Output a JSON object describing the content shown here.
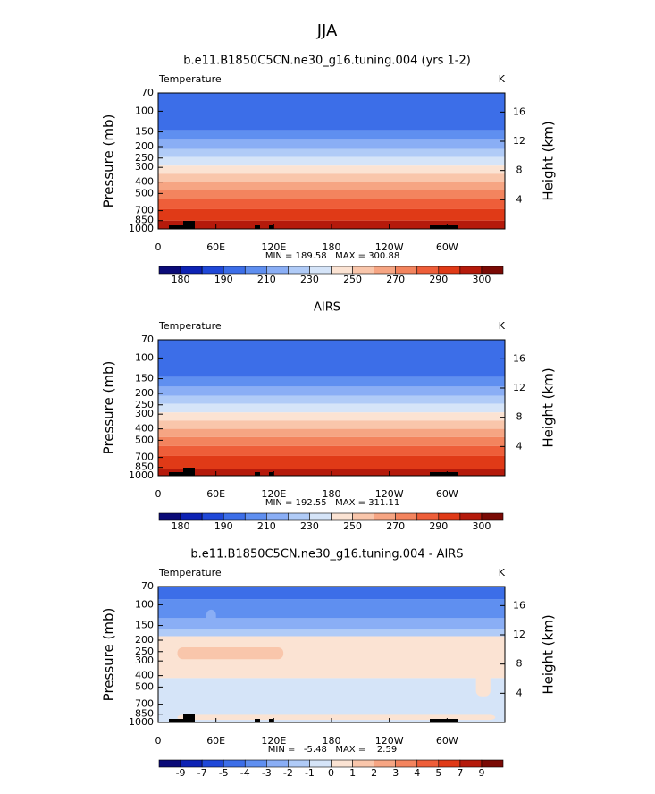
{
  "suptitle": "JJA",
  "chart_data": [
    {
      "type": "contour",
      "title": "b.e11.B1850C5CN.ne30_g16.tuning.004 (yrs 1-2)",
      "label_left": "Temperature",
      "label_right": "K",
      "ylabel": "Pressure (mb)",
      "y2label": "Height (km)",
      "ylim": [
        70,
        1000
      ],
      "log_y": true,
      "y_reversed": true,
      "yticks": [
        70,
        100,
        150,
        200,
        250,
        300,
        400,
        500,
        700,
        850,
        1000
      ],
      "y2ticks": [
        4,
        8,
        12,
        16
      ],
      "xlim": [
        0,
        360
      ],
      "xticks": [
        0,
        {
          "value": 60,
          "label": "60E"
        },
        {
          "value": 120,
          "label": "120E"
        },
        180,
        {
          "value": 240,
          "label": "120W"
        },
        {
          "value": 300,
          "label": "60W"
        }
      ],
      "stats": "MIN = 189.58   MAX = 300.88",
      "colorbar": {
        "colors": [
          "#0b0b78",
          "#0d22b4",
          "#1f48d8",
          "#3c6ee8",
          "#5f8ff0",
          "#8aaef5",
          "#b0cbf7",
          "#d5e4f8",
          "#fbe3d3",
          "#f9c6ab",
          "#f6a583",
          "#f3845e",
          "#ee5e39",
          "#e03a17",
          "#b51a0b",
          "#7a0a05"
        ],
        "labels": [
          180,
          190,
          210,
          230,
          250,
          270,
          290,
          300
        ]
      },
      "bands": [
        {
          "from": 70,
          "to": 145,
          "level": 3
        },
        {
          "from": 145,
          "to": 175,
          "level": 4
        },
        {
          "from": 175,
          "to": 210,
          "level": 5
        },
        {
          "from": 210,
          "to": 245,
          "level": 6
        },
        {
          "from": 245,
          "to": 290,
          "level": 7
        },
        {
          "from": 290,
          "to": 340,
          "level": 8
        },
        {
          "from": 340,
          "to": 400,
          "level": 9
        },
        {
          "from": 400,
          "to": 470,
          "level": 10
        },
        {
          "from": 470,
          "to": 560,
          "level": 11
        },
        {
          "from": 560,
          "to": 680,
          "level": 12
        },
        {
          "from": 680,
          "to": 850,
          "level": 13
        },
        {
          "from": 850,
          "to": 1000,
          "level": 14
        }
      ],
      "patches": []
    },
    {
      "type": "contour",
      "title": "AIRS",
      "label_left": "Temperature",
      "label_right": "K",
      "ylabel": "Pressure (mb)",
      "y2label": "Height (km)",
      "ylim": [
        70,
        1000
      ],
      "log_y": true,
      "y_reversed": true,
      "yticks": [
        70,
        100,
        150,
        200,
        250,
        300,
        400,
        500,
        700,
        850,
        1000
      ],
      "y2ticks": [
        4,
        8,
        12,
        16
      ],
      "xlim": [
        0,
        360
      ],
      "xticks": [
        0,
        {
          "value": 60,
          "label": "60E"
        },
        {
          "value": 120,
          "label": "120E"
        },
        180,
        {
          "value": 240,
          "label": "120W"
        },
        {
          "value": 300,
          "label": "60W"
        }
      ],
      "stats": "MIN = 192.55   MAX = 311.11",
      "colorbar": {
        "colors": [
          "#0b0b78",
          "#0d22b4",
          "#1f48d8",
          "#3c6ee8",
          "#5f8ff0",
          "#8aaef5",
          "#b0cbf7",
          "#d5e4f8",
          "#fbe3d3",
          "#f9c6ab",
          "#f6a583",
          "#f3845e",
          "#ee5e39",
          "#e03a17",
          "#b51a0b",
          "#7a0a05"
        ],
        "labels": [
          180,
          190,
          210,
          230,
          250,
          270,
          290,
          300
        ]
      },
      "bands": [
        {
          "from": 70,
          "to": 145,
          "level": 3
        },
        {
          "from": 145,
          "to": 175,
          "level": 4
        },
        {
          "from": 175,
          "to": 210,
          "level": 5
        },
        {
          "from": 210,
          "to": 245,
          "level": 6
        },
        {
          "from": 245,
          "to": 290,
          "level": 7
        },
        {
          "from": 290,
          "to": 340,
          "level": 8
        },
        {
          "from": 340,
          "to": 400,
          "level": 9
        },
        {
          "from": 400,
          "to": 470,
          "level": 10
        },
        {
          "from": 470,
          "to": 560,
          "level": 11
        },
        {
          "from": 560,
          "to": 680,
          "level": 12
        },
        {
          "from": 680,
          "to": 880,
          "level": 13
        },
        {
          "from": 880,
          "to": 1000,
          "level": 14
        }
      ],
      "patches": []
    },
    {
      "type": "contour",
      "title": "b.e11.B1850C5CN.ne30_g16.tuning.004 - AIRS",
      "label_left": "Temperature",
      "label_right": "K",
      "ylabel": "Pressure (mb)",
      "y2label": "Height (km)",
      "ylim": [
        70,
        1000
      ],
      "log_y": true,
      "y_reversed": true,
      "yticks": [
        70,
        100,
        150,
        200,
        250,
        300,
        400,
        500,
        700,
        850,
        1000
      ],
      "y2ticks": [
        4,
        8,
        12,
        16
      ],
      "xlim": [
        0,
        360
      ],
      "xticks": [
        0,
        {
          "value": 60,
          "label": "60E"
        },
        {
          "value": 120,
          "label": "120E"
        },
        180,
        {
          "value": 240,
          "label": "120W"
        },
        {
          "value": 300,
          "label": "60W"
        }
      ],
      "stats": "MIN =   -5.48   MAX =    2.59",
      "colorbar": {
        "colors": [
          "#0b0b78",
          "#0d22b4",
          "#1f48d8",
          "#3c6ee8",
          "#5f8ff0",
          "#8aaef5",
          "#b0cbf7",
          "#d5e4f8",
          "#fbe3d3",
          "#f9c6ab",
          "#f6a583",
          "#f3845e",
          "#ee5e39",
          "#e03a17",
          "#b51a0b",
          "#7a0a05"
        ],
        "labels": [
          -9,
          -7,
          -5,
          -4,
          -3,
          -2,
          -1,
          0,
          1,
          2,
          3,
          4,
          5,
          7,
          9
        ]
      },
      "bands": [
        {
          "from": 70,
          "to": 90,
          "level": 3
        },
        {
          "from": 90,
          "to": 130,
          "level": 4
        },
        {
          "from": 130,
          "to": 160,
          "level": 5
        },
        {
          "from": 160,
          "to": 185,
          "level": 6
        },
        {
          "from": 185,
          "to": 420,
          "level": 8
        },
        {
          "from": 420,
          "to": 1000,
          "level": 7
        }
      ],
      "patches": [
        {
          "lon": [
            20,
            130
          ],
          "p": [
            230,
            290
          ],
          "level": 9
        },
        {
          "lon": [
            20,
            350
          ],
          "p": [
            860,
            950
          ],
          "level": 8
        },
        {
          "lon": [
            50,
            60
          ],
          "p": [
            110,
            160
          ],
          "level": 5
        },
        {
          "lon": [
            330,
            345
          ],
          "p": [
            380,
            600
          ],
          "level": 8
        }
      ]
    }
  ]
}
